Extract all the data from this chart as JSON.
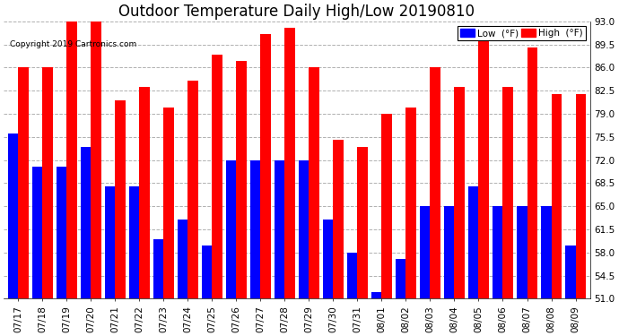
{
  "title": "Outdoor Temperature Daily High/Low 20190810",
  "copyright": "Copyright 2019 Cartronics.com",
  "legend_low": "Low  (°F)",
  "legend_high": "High  (°F)",
  "dates": [
    "07/17",
    "07/18",
    "07/19",
    "07/20",
    "07/21",
    "07/22",
    "07/23",
    "07/24",
    "07/25",
    "07/26",
    "07/27",
    "07/28",
    "07/29",
    "07/30",
    "07/31",
    "08/01",
    "08/02",
    "08/03",
    "08/04",
    "08/05",
    "08/06",
    "08/07",
    "08/08",
    "08/09"
  ],
  "highs": [
    86,
    86,
    93,
    93,
    81,
    83,
    80,
    84,
    88,
    87,
    91,
    92,
    86,
    75,
    74,
    79,
    80,
    86,
    83,
    90,
    83,
    89,
    82,
    82
  ],
  "lows": [
    76,
    71,
    71,
    74,
    68,
    68,
    60,
    63,
    59,
    72,
    72,
    72,
    72,
    63,
    58,
    52,
    57,
    65,
    65,
    68,
    65,
    65,
    65,
    59
  ],
  "ymin": 51,
  "ylim": [
    51,
    93
  ],
  "yticks": [
    51.0,
    54.5,
    58.0,
    61.5,
    65.0,
    68.5,
    72.0,
    75.5,
    79.0,
    82.5,
    86.0,
    89.5,
    93.0
  ],
  "bar_width": 0.42,
  "low_color": "#0000ff",
  "high_color": "#ff0000",
  "bg_color": "#ffffff",
  "grid_color": "#b0b0b0",
  "title_fontsize": 12,
  "tick_fontsize": 7.5
}
